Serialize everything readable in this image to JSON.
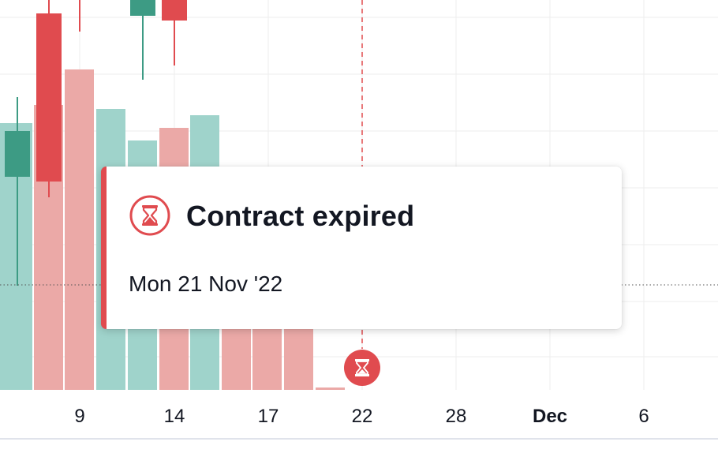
{
  "colors": {
    "up": "#3d9b84",
    "down": "#e04b4f",
    "vol_up": "#9fd3cb",
    "vol_down": "#eba9a7",
    "grid": "#eeeeee",
    "expiry_marker": "#e04b4f"
  },
  "tooltip": {
    "icon": "hourglass-icon",
    "title": "Contract expired",
    "date": "Mon 21 Nov '22"
  },
  "expiry_marker": {
    "icon": "hourglass-icon"
  },
  "x_axis": {
    "ticks": [
      {
        "label": "9",
        "bold": false
      },
      {
        "label": "14",
        "bold": false
      },
      {
        "label": "17",
        "bold": false
      },
      {
        "label": "22",
        "bold": false
      },
      {
        "label": "28",
        "bold": false
      },
      {
        "label": "Dec",
        "bold": true
      },
      {
        "label": "6",
        "bold": false
      }
    ]
  }
}
